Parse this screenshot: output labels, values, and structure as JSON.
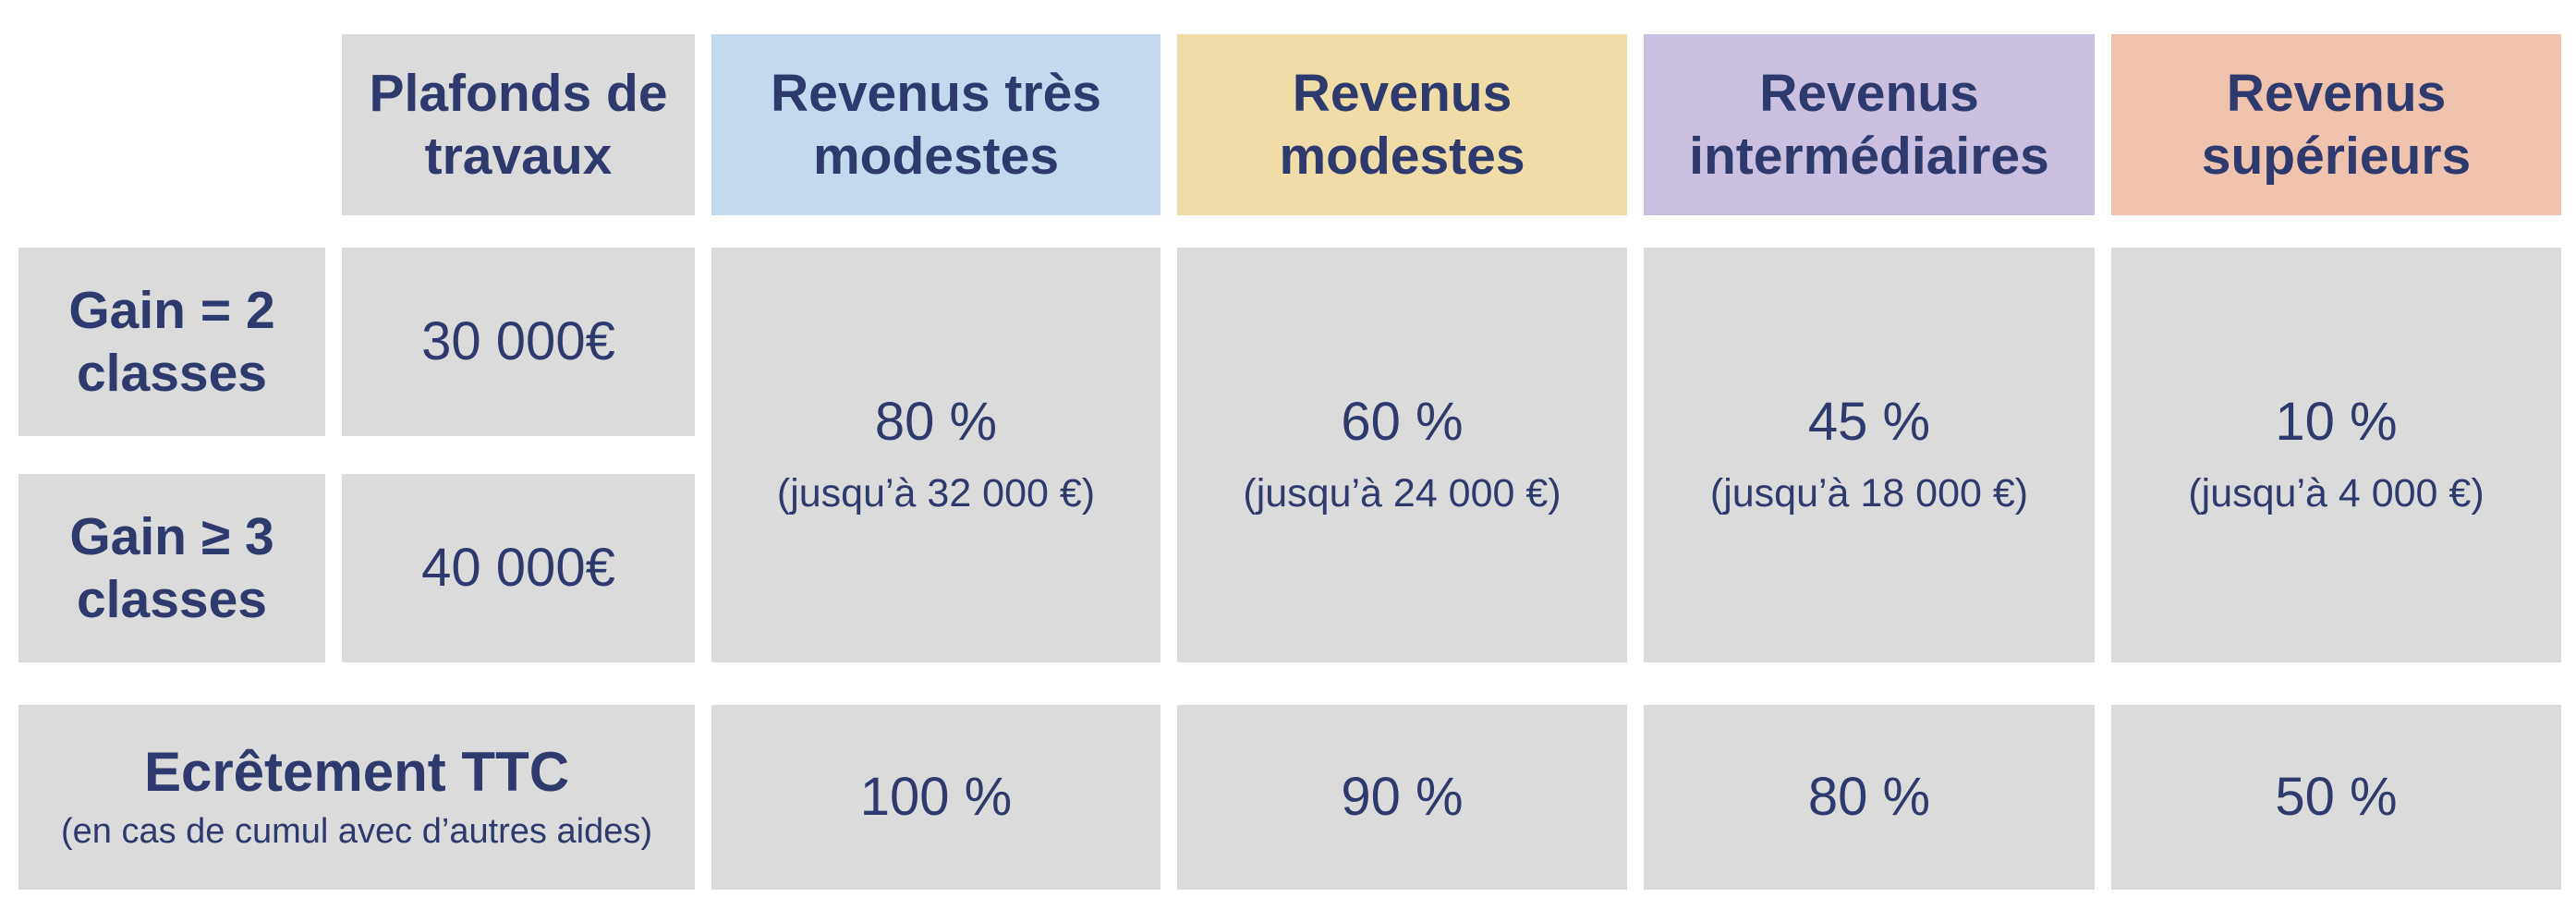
{
  "colors": {
    "text_navy": "#2E3A6D",
    "cell_gray": "#DBDBDB",
    "header_blue": "#C3DAEE",
    "header_yellow": "#EFDCA7",
    "header_purple": "#CBC0DF",
    "header_salmon": "#F0C3AE",
    "background": "#FFFFFF"
  },
  "table": {
    "headers": [
      {
        "label": "Plafonds de travaux"
      },
      {
        "label": "Revenus très modestes"
      },
      {
        "label": "Revenus modestes"
      },
      {
        "label": "Revenus intermédiaires"
      },
      {
        "label": "Revenus supérieurs"
      }
    ],
    "rows": [
      {
        "label": "Gain = 2 classes",
        "plafond": "30 000€"
      },
      {
        "label": "Gain ≥ 3 classes",
        "plafond": "40 000€"
      }
    ],
    "rates": [
      {
        "percent": "80 %",
        "cap": "(jusqu’à 32 000 €)"
      },
      {
        "percent": "60 %",
        "cap": "(jusqu’à 24 000 €)"
      },
      {
        "percent": "45 %",
        "cap": "(jusqu’à 18 000 €)"
      },
      {
        "percent": "10 %",
        "cap": "(jusqu’à 4 000 €)"
      }
    ],
    "footer": {
      "title": "Ecrêtement TTC",
      "subtitle": "(en cas de cumul avec d’autres aides)",
      "values": [
        "100 %",
        "90 %",
        "80 %",
        "50 %"
      ]
    }
  },
  "chart_data": {
    "type": "table",
    "columns": [
      "",
      "Plafonds de travaux",
      "Revenus très modestes",
      "Revenus modestes",
      "Revenus intermédiaires",
      "Revenus supérieurs"
    ],
    "rows": [
      [
        "Gain = 2 classes",
        "30 000€",
        "80 % (jusqu’à 32 000 €)",
        "60 % (jusqu’à 24 000 €)",
        "45 % (jusqu’à 18 000 €)",
        "10 % (jusqu’à 4 000 €)"
      ],
      [
        "Gain ≥ 3 classes",
        "40 000€",
        "80 % (jusqu’à 32 000 €)",
        "60 % (jusqu’à 24 000 €)",
        "45 % (jusqu’à 18 000 €)",
        "10 % (jusqu’à 4 000 €)"
      ],
      [
        "Ecrêtement TTC (en cas de cumul avec d’autres aides)",
        "",
        "100 %",
        "90 %",
        "80 %",
        "50 %"
      ]
    ],
    "notes": "Rate cells are merged vertically across the two 'Gain' rows; the Ecrêtement label is merged across the first two columns."
  }
}
